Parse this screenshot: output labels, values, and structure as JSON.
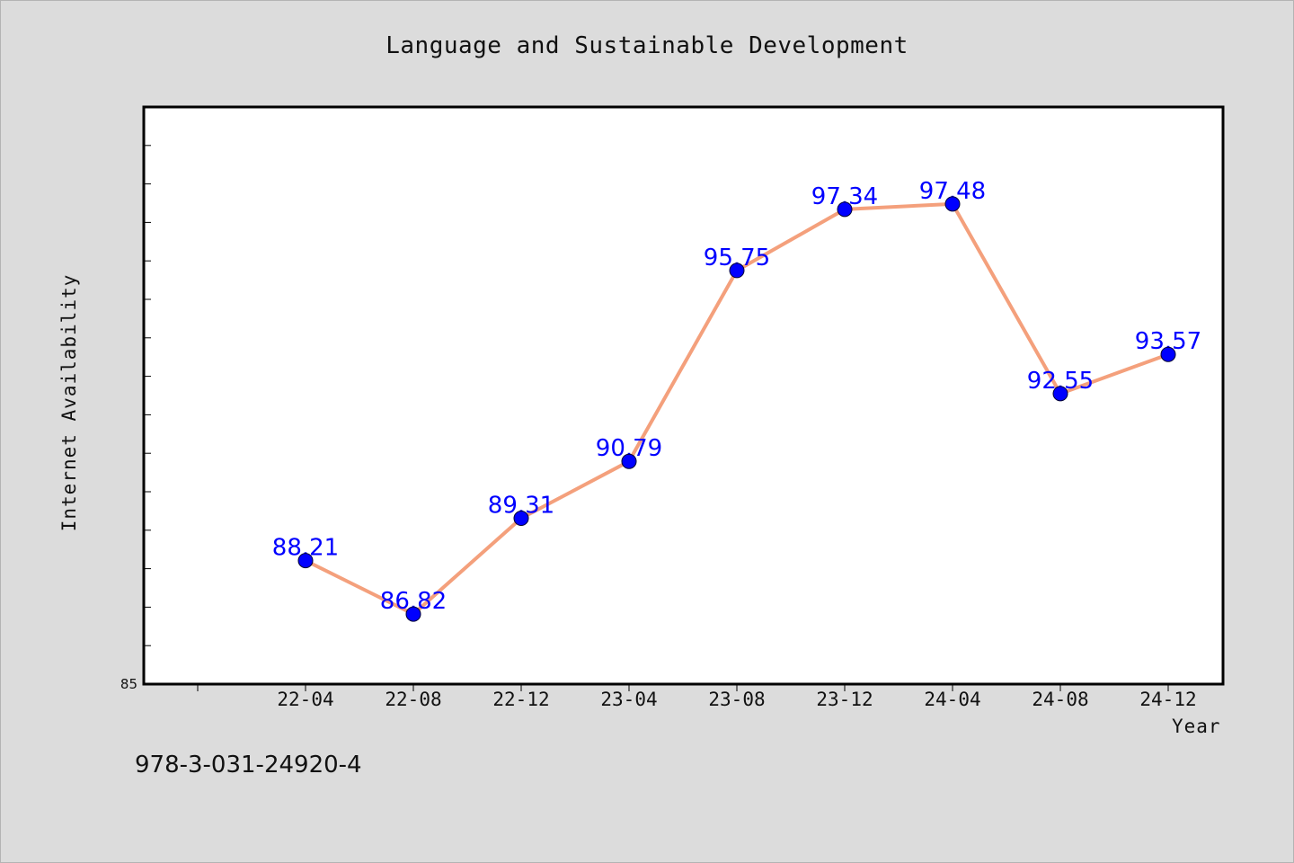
{
  "footnote": "978-3-031-24920-4",
  "chart_data": {
    "type": "line",
    "title": "Language and Sustainable Development",
    "xlabel": "Year",
    "ylabel": "Internet Availability",
    "categories": [
      "22-04",
      "22-08",
      "22-12",
      "23-04",
      "23-08",
      "23-12",
      "24-04",
      "24-08",
      "24-12"
    ],
    "values": [
      88.21,
      86.82,
      89.31,
      90.79,
      95.75,
      97.34,
      97.48,
      92.55,
      93.57
    ],
    "data_labels": [
      "88.21",
      "86.82",
      "89.31",
      "90.79",
      "95.75",
      "97.34",
      "97.48",
      "92.55",
      "93.57"
    ],
    "ylim": [
      85,
      100
    ],
    "y_tick_label": "85",
    "grid": false,
    "line_color": "#f4a07c",
    "marker_color": "#0000ff",
    "label_color": "#0000ff"
  }
}
